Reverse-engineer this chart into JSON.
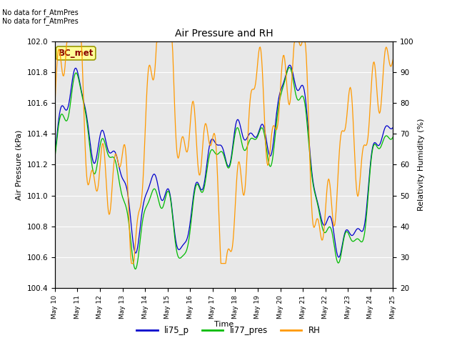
{
  "title": "Air Pressure and RH",
  "xlabel": "Time",
  "ylabel_left": "Air Pressure (kPa)",
  "ylabel_right": "Relativity Humidity (%)",
  "annotation_line1": "No data for f_AtmPres",
  "annotation_line2": "No data for f_AtmPres",
  "box_label": "BC_met",
  "ylim_left": [
    100.4,
    102.0
  ],
  "ylim_right": [
    20,
    100
  ],
  "yticks_left": [
    100.4,
    100.6,
    100.8,
    101.0,
    101.2,
    101.4,
    101.6,
    101.8,
    102.0
  ],
  "yticks_right": [
    20,
    30,
    40,
    50,
    60,
    70,
    80,
    90,
    100
  ],
  "color_li75": "#0000cc",
  "color_li77": "#00bb00",
  "color_rh": "#ff9900",
  "bg_color": "#e8e8e8",
  "legend_entries": [
    "li75_p",
    "li77_pres",
    "RH"
  ],
  "xtick_labels": [
    "May 10",
    "May 11",
    "May 12",
    "May 13",
    "May 14",
    "May 15",
    "May 16",
    "May 17",
    "May 18",
    "May 19",
    "May 20",
    "May 21",
    "May 22",
    "May 23",
    "May 24",
    "May 25"
  ]
}
